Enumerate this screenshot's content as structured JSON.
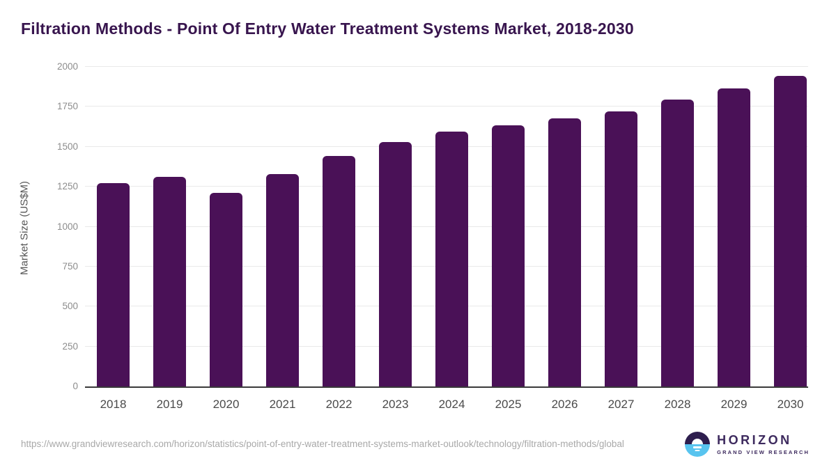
{
  "title": "Filtration Methods - Point Of Entry Water Treatment Systems Market, 2018-2030",
  "chart_data": {
    "type": "bar",
    "categories": [
      "2018",
      "2019",
      "2020",
      "2021",
      "2022",
      "2023",
      "2024",
      "2025",
      "2026",
      "2027",
      "2028",
      "2029",
      "2030"
    ],
    "values": [
      1272,
      1313,
      1212,
      1330,
      1442,
      1529,
      1596,
      1632,
      1678,
      1723,
      1795,
      1865,
      1945
    ],
    "title": "Filtration Methods - Point Of Entry Water Treatment Systems Market, 2018-2030",
    "xlabel": "",
    "ylabel": "Market Size (US$M)",
    "ylim": [
      0,
      2000
    ],
    "ytick_step": 250,
    "yticks": [
      0,
      250,
      500,
      750,
      1000,
      1250,
      1500,
      1750,
      2000
    ],
    "grid": "horizontal",
    "legend": "none",
    "bar_color": "#4a1157"
  },
  "colors": {
    "title_text": "#38154e",
    "bar": "#4a1157",
    "gridline": "#e9e9e9",
    "axis_line": "#3a3a3a",
    "y_tick_text": "#8c8c8c",
    "x_tick_text": "#4a4a4a",
    "url_text": "#a8a8a8",
    "logo_dark": "#2e1e4e",
    "logo_blue": "#58c4ef"
  },
  "footer": {
    "source_url": "https://www.grandviewresearch.com/horizon/statistics/point-of-entry-water-treatment-systems-market-outlook/technology/filtration-methods/global",
    "logo": {
      "name": "HORIZON",
      "subtext": "GRAND VIEW RESEARCH"
    }
  }
}
